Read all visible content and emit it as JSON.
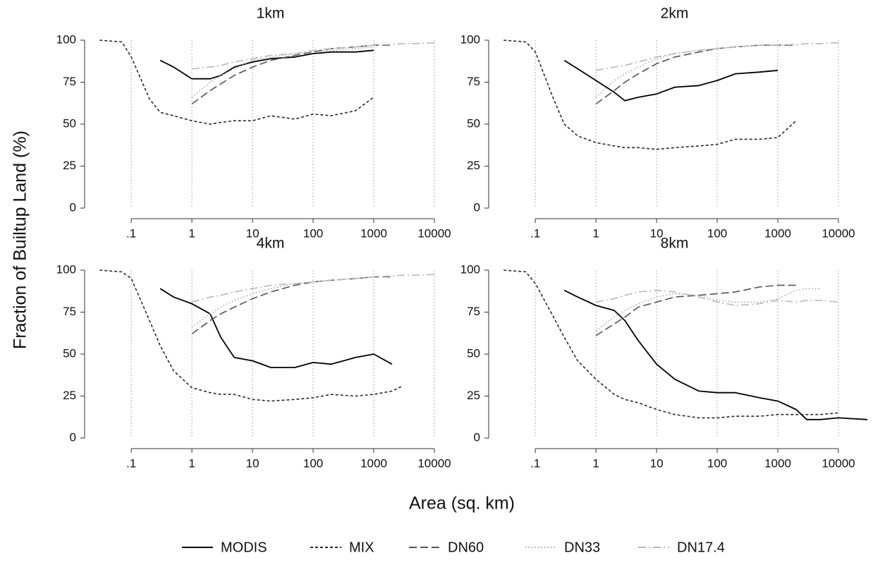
{
  "ylabel": "Fraction of Builtup Land (%)",
  "xlabel": "Area (sq. km)",
  "legend": [
    {
      "name": "MODIS",
      "color": "#000000",
      "dash": "solid"
    },
    {
      "name": "MIX",
      "color": "#2a2a2a",
      "dash": "short"
    },
    {
      "name": "DN60",
      "color": "#555555",
      "dash": "long"
    },
    {
      "name": "DN33",
      "color": "#a8a8a8",
      "dash": "dot"
    },
    {
      "name": "DN17.4",
      "color": "#b8b8b8",
      "dash": "dashdot"
    }
  ],
  "chart_data": [
    {
      "type": "line",
      "title": "1km",
      "log_x": true,
      "grid": true,
      "x": [
        0.03,
        0.07,
        0.1,
        0.2,
        0.3,
        0.5,
        1,
        2,
        3,
        5,
        10,
        20,
        50,
        100,
        200,
        500,
        1000,
        2000,
        3000,
        5000,
        10000,
        30000
      ],
      "xlim": [
        0.017,
        30000
      ],
      "xticks": [
        {
          "value": 0.1,
          "label": ".1"
        },
        1,
        10,
        100,
        1000,
        10000
      ],
      "ylim": [
        0,
        100
      ],
      "yticks": [
        0,
        25,
        50,
        75,
        100
      ],
      "series": [
        {
          "values": [
            null,
            null,
            null,
            null,
            88,
            84,
            77,
            77,
            79,
            84,
            87,
            89,
            90,
            92,
            93,
            93,
            94,
            null,
            null,
            null,
            null,
            null
          ]
        },
        {
          "values": [
            100,
            99,
            90,
            65,
            57,
            55,
            52,
            50,
            51,
            52,
            52,
            55,
            53,
            56,
            55,
            58,
            66,
            null,
            null,
            null,
            null,
            null
          ]
        },
        {
          "values": [
            null,
            null,
            null,
            null,
            null,
            null,
            62,
            70,
            74,
            79,
            84,
            88,
            91,
            93,
            95,
            96,
            97,
            97,
            null,
            null,
            null,
            null
          ]
        },
        {
          "values": [
            null,
            null,
            null,
            null,
            null,
            null,
            66,
            75,
            79,
            83,
            88,
            90,
            92,
            93,
            94,
            95,
            96,
            null,
            null,
            null,
            null,
            null
          ]
        },
        {
          "values": [
            null,
            null,
            null,
            null,
            null,
            null,
            83,
            84,
            85,
            87,
            89,
            91,
            92,
            94,
            95,
            96,
            97,
            97.5,
            98,
            98,
            98.5,
            null
          ]
        }
      ]
    },
    {
      "type": "line",
      "title": "2km",
      "log_x": true,
      "grid": true,
      "x": [
        0.03,
        0.07,
        0.1,
        0.2,
        0.3,
        0.5,
        1,
        2,
        3,
        5,
        10,
        20,
        50,
        100,
        200,
        500,
        1000,
        2000,
        3000,
        5000,
        10000,
        30000
      ],
      "xlim": [
        0.017,
        30000
      ],
      "xticks": [
        {
          "value": 0.1,
          "label": ".1"
        },
        1,
        10,
        100,
        1000,
        10000
      ],
      "ylim": [
        0,
        100
      ],
      "yticks": [
        0,
        25,
        50,
        75,
        100
      ],
      "series": [
        {
          "values": [
            null,
            null,
            null,
            null,
            88,
            83,
            76,
            69,
            64,
            66,
            68,
            72,
            73,
            76,
            80,
            81,
            82,
            null,
            null,
            null,
            null,
            null
          ]
        },
        {
          "values": [
            100,
            99,
            93,
            65,
            50,
            43,
            39,
            37,
            36,
            36,
            35,
            36,
            37,
            38,
            41,
            41,
            42,
            52,
            null,
            null,
            null,
            null
          ]
        },
        {
          "values": [
            null,
            null,
            null,
            null,
            null,
            null,
            62,
            70,
            75,
            80,
            86,
            90,
            93,
            95,
            96,
            97,
            97,
            97,
            null,
            null,
            null,
            null
          ]
        },
        {
          "values": [
            null,
            null,
            null,
            null,
            null,
            null,
            66,
            76,
            80,
            84,
            89,
            92,
            94,
            95,
            96,
            97,
            97,
            null,
            null,
            null,
            null,
            null
          ]
        },
        {
          "values": [
            null,
            null,
            null,
            null,
            null,
            null,
            82,
            84,
            85,
            87,
            90,
            92,
            94,
            95,
            96,
            97,
            97,
            97.5,
            98,
            98,
            98.5,
            null
          ]
        }
      ]
    },
    {
      "type": "line",
      "title": "4km",
      "log_x": true,
      "grid": true,
      "x": [
        0.03,
        0.07,
        0.1,
        0.2,
        0.3,
        0.5,
        1,
        2,
        3,
        5,
        10,
        20,
        50,
        100,
        200,
        500,
        1000,
        2000,
        3000,
        5000,
        10000,
        30000
      ],
      "xlim": [
        0.017,
        30000
      ],
      "xticks": [
        {
          "value": 0.1,
          "label": ".1"
        },
        1,
        10,
        100,
        1000,
        10000
      ],
      "ylim": [
        0,
        100
      ],
      "yticks": [
        0,
        25,
        50,
        75,
        100
      ],
      "series": [
        {
          "values": [
            null,
            null,
            null,
            null,
            89,
            84,
            80,
            74,
            60,
            48,
            46,
            42,
            42,
            45,
            44,
            48,
            50,
            44,
            null,
            null,
            null,
            null
          ]
        },
        {
          "values": [
            100,
            99,
            95,
            70,
            55,
            40,
            30,
            27,
            26,
            26,
            23,
            22,
            23,
            24,
            26,
            25,
            26,
            28,
            31,
            null,
            null,
            null
          ]
        },
        {
          "values": [
            null,
            null,
            null,
            null,
            null,
            null,
            62,
            70,
            74,
            78,
            83,
            87,
            91,
            93,
            94,
            95,
            96,
            96,
            null,
            null,
            null,
            null
          ]
        },
        {
          "values": [
            null,
            null,
            null,
            null,
            null,
            null,
            66,
            74,
            78,
            82,
            86,
            89,
            92,
            93,
            94,
            95,
            96,
            null,
            null,
            null,
            null,
            null
          ]
        },
        {
          "values": [
            null,
            null,
            null,
            null,
            null,
            null,
            81,
            84,
            85,
            87,
            89,
            91,
            92,
            93,
            94,
            95,
            96,
            96.5,
            97,
            97,
            97.5,
            null
          ]
        }
      ]
    },
    {
      "type": "line",
      "title": "8km",
      "log_x": true,
      "grid": true,
      "x": [
        0.03,
        0.07,
        0.1,
        0.2,
        0.3,
        0.5,
        1,
        2,
        3,
        5,
        10,
        20,
        50,
        100,
        200,
        500,
        1000,
        2000,
        3000,
        5000,
        10000,
        30000
      ],
      "xlim": [
        0.017,
        30000
      ],
      "xticks": [
        {
          "value": 0.1,
          "label": ".1"
        },
        1,
        10,
        100,
        1000,
        10000
      ],
      "ylim": [
        0,
        100
      ],
      "yticks": [
        0,
        25,
        50,
        75,
        100
      ],
      "series": [
        {
          "values": [
            null,
            null,
            null,
            null,
            88,
            84,
            79,
            76,
            70,
            58,
            44,
            35,
            28,
            27,
            27,
            24,
            22,
            17,
            11,
            11,
            12,
            11
          ]
        },
        {
          "values": [
            100,
            99,
            92,
            72,
            60,
            46,
            35,
            26,
            23,
            21,
            17,
            14,
            12,
            12,
            13,
            13,
            14,
            14,
            14,
            14,
            15,
            null
          ]
        },
        {
          "values": [
            null,
            null,
            null,
            null,
            null,
            null,
            61,
            68,
            72,
            78,
            81,
            84,
            85,
            86,
            87,
            90,
            91,
            91,
            null,
            null,
            null,
            null
          ]
        },
        {
          "values": [
            null,
            null,
            null,
            null,
            null,
            null,
            64,
            72,
            76,
            80,
            84,
            86,
            85,
            82,
            81,
            81,
            83,
            88,
            89,
            89,
            null,
            null
          ]
        },
        {
          "values": [
            null,
            null,
            null,
            null,
            null,
            null,
            81,
            83,
            85,
            87,
            88,
            87,
            84,
            81,
            79,
            80,
            82,
            81,
            82,
            82,
            81,
            null
          ]
        }
      ]
    }
  ]
}
